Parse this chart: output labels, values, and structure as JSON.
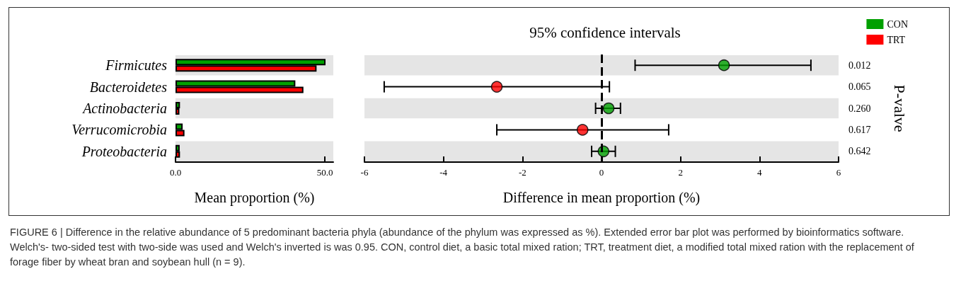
{
  "chart_data": [
    {
      "type": "bar",
      "orientation": "horizontal",
      "categories": [
        "Firmicutes",
        "Bacteroidetes",
        "Actinobacteria",
        "Verrucomicrobia",
        "Proteobacteria"
      ],
      "series": [
        {
          "name": "CON",
          "color": "#00a000",
          "values": [
            50.2,
            40.1,
            1.5,
            2.4,
            1.4
          ]
        },
        {
          "name": "TRT",
          "color": "#ff0000",
          "values": [
            47.2,
            42.8,
            1.3,
            3.0,
            1.5
          ]
        }
      ],
      "xlim": [
        0,
        52.8
      ],
      "xticks": [
        {
          "value": 0,
          "label": "0.0"
        },
        {
          "value": 50,
          "label": "50.0"
        }
      ],
      "xlabel": "Mean proportion (%)",
      "legend": "top right",
      "grid": false,
      "bands": [
        {
          "axis": "y",
          "from": "Firmicutes",
          "to": "Firmicutes",
          "color": "#e5e5e5"
        },
        {
          "axis": "y",
          "from": "Actinobacteria",
          "to": "Actinobacteria",
          "color": "#e5e5e5"
        },
        {
          "axis": "y",
          "from": "Proteobacteria",
          "to": "Proteobacteria",
          "color": "#e5e5e5"
        }
      ],
      "annotations": [
        "FIGURE 6 | Difference in the relative abundance of 5 predominant bacteria phyla (abundance of the phylum was expressed as %). Extended error bar plot was performed by bioinformatics software. Welch's- two-sided test with two-side was used and Welch's inverted is was 0.95. CON, control diet, a basic total mixed ration; TRT, treatment diet, a modified total mixed ration with the replacement of forage fiber by wheat bran and soybean hull (n = 9)."
      ]
    },
    {
      "type": "scatter",
      "orientation": "horizontal",
      "title": "95% confidence intervals",
      "categories": [
        "Firmicutes",
        "Bacteroidetes",
        "Actinobacteria",
        "Verrucomicrobia",
        "Proteobacteria"
      ],
      "y2_categories": [
        "0.012",
        "0.065",
        "0.260",
        "0.617",
        "0.642"
      ],
      "y2label": "P-valve",
      "tick_labels": "x",
      "marker": "circle",
      "grid": false,
      "values": [
        3.1,
        -2.65,
        0.18,
        -0.48,
        0.05
      ],
      "colors": [
        "#00a000",
        "#ff0000",
        "#00a000",
        "#ff0000",
        "#00a000"
      ],
      "errors": [
        [
          0.85,
          5.3
        ],
        [
          -5.5,
          0.2
        ],
        [
          -0.15,
          0.48
        ],
        [
          -2.65,
          1.7
        ],
        [
          -0.25,
          0.35
        ]
      ],
      "xlim": [
        -6,
        6
      ],
      "xticks": [
        -6,
        -4,
        -2,
        0,
        2,
        4,
        6
      ],
      "xlabel": "Difference in mean proportion (%)",
      "ref_lines": [
        {
          "axis": "x",
          "value": 0,
          "line_style": "dashed"
        }
      ],
      "bands": [
        {
          "axis": "y",
          "from": "Firmicutes",
          "to": "Firmicutes",
          "color": "#e5e5e5"
        },
        {
          "axis": "y",
          "from": "Actinobacteria",
          "to": "Actinobacteria",
          "color": "#e5e5e5"
        },
        {
          "axis": "y",
          "from": "Proteobacteria",
          "to": "Proteobacteria",
          "color": "#e5e5e5"
        }
      ]
    }
  ]
}
